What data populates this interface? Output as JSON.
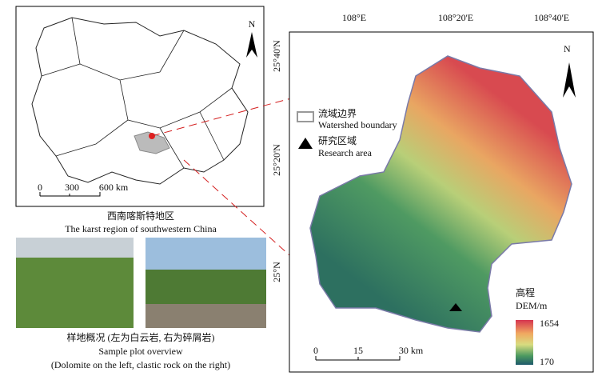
{
  "inset_map": {
    "north": "N",
    "scale_labels": [
      "0",
      "300",
      "600 km"
    ]
  },
  "inset_caption": {
    "zh": "西南喀斯特地区",
    "en": "The karst region of southwestern China"
  },
  "photo_caption": {
    "zh": "样地概况 (左为白云岩, 右为碎屑岩)",
    "en": "Sample plot overview",
    "en_detail": "(Dolomite on the left, clastic rock on the right)"
  },
  "main_map": {
    "north": "N",
    "top_labels": [
      "108°E",
      "108°20'E",
      "108°40'E"
    ],
    "left_labels": [
      "25°40'N",
      "25°20'N",
      "25°N"
    ],
    "legend": [
      {
        "zh": "流域边界",
        "en": "Watershed boundary"
      },
      {
        "zh": "研究区域",
        "en": "Research area"
      }
    ],
    "dem_legend": {
      "title_zh": "高程",
      "title_en": "DEM/m",
      "max": "1654",
      "min": "170"
    },
    "scale_labels": [
      "0",
      "15",
      "30 km"
    ]
  }
}
